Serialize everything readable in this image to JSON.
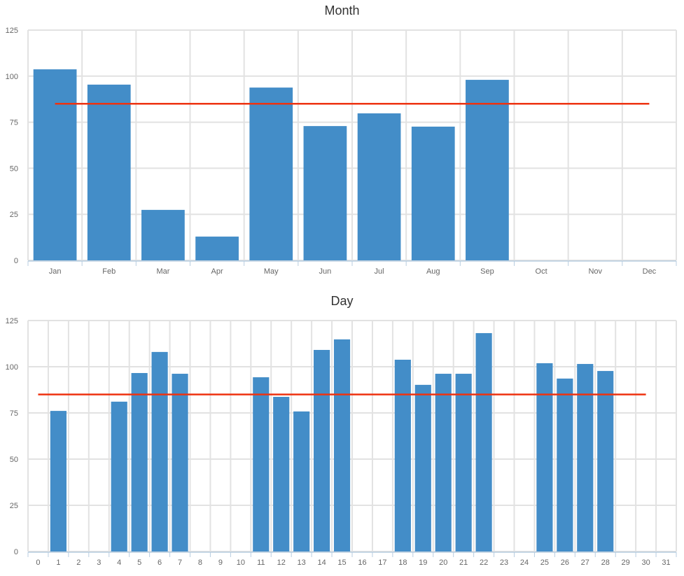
{
  "colors": {
    "bar": "#438dc8",
    "average_line": "#ee3311",
    "grid": "#e2e2e2",
    "axis": "#b8cde0",
    "tick_text": "#666666",
    "title": "#333333"
  },
  "chart_data": [
    {
      "type": "bar",
      "title": "Month",
      "xlabel": "",
      "ylabel": "",
      "ylim": [
        0,
        125
      ],
      "yticks": [
        0,
        25,
        50,
        75,
        100,
        125
      ],
      "grid": true,
      "categories": [
        "Jan",
        "Feb",
        "Mar",
        "Apr",
        "May",
        "Jun",
        "Jul",
        "Aug",
        "Sep",
        "Oct",
        "Nov",
        "Dec"
      ],
      "series": [
        {
          "name": "value",
          "type": "bar",
          "values": [
            103.7,
            95.4,
            27.4,
            12.9,
            93.8,
            72.9,
            79.8,
            72.6,
            98.0,
            0,
            0,
            0
          ]
        },
        {
          "name": "average",
          "type": "line",
          "value": 85.0,
          "from_category": "Jan",
          "to_category": "Dec"
        }
      ]
    },
    {
      "type": "bar",
      "title": "Day",
      "xlabel": "",
      "ylabel": "",
      "ylim": [
        0,
        125
      ],
      "yticks": [
        0,
        25,
        50,
        75,
        100,
        125
      ],
      "grid": true,
      "categories": [
        "0",
        "1",
        "2",
        "3",
        "4",
        "5",
        "6",
        "7",
        "8",
        "9",
        "10",
        "11",
        "12",
        "13",
        "14",
        "15",
        "16",
        "17",
        "18",
        "19",
        "20",
        "21",
        "22",
        "23",
        "24",
        "25",
        "26",
        "27",
        "28",
        "29",
        "30",
        "31"
      ],
      "series": [
        {
          "name": "value",
          "type": "bar",
          "values": [
            0,
            76.1,
            0,
            0,
            81.1,
            96.6,
            108.0,
            96.2,
            0,
            0,
            0,
            94.3,
            83.7,
            75.8,
            109.1,
            114.8,
            0,
            0,
            103.8,
            90.2,
            96.2,
            96.2,
            118.2,
            0,
            0,
            101.9,
            93.6,
            101.5,
            97.7,
            0,
            0,
            0
          ]
        },
        {
          "name": "average",
          "type": "line",
          "value": 85.0,
          "from_category": "0",
          "to_category": "30"
        }
      ]
    }
  ]
}
